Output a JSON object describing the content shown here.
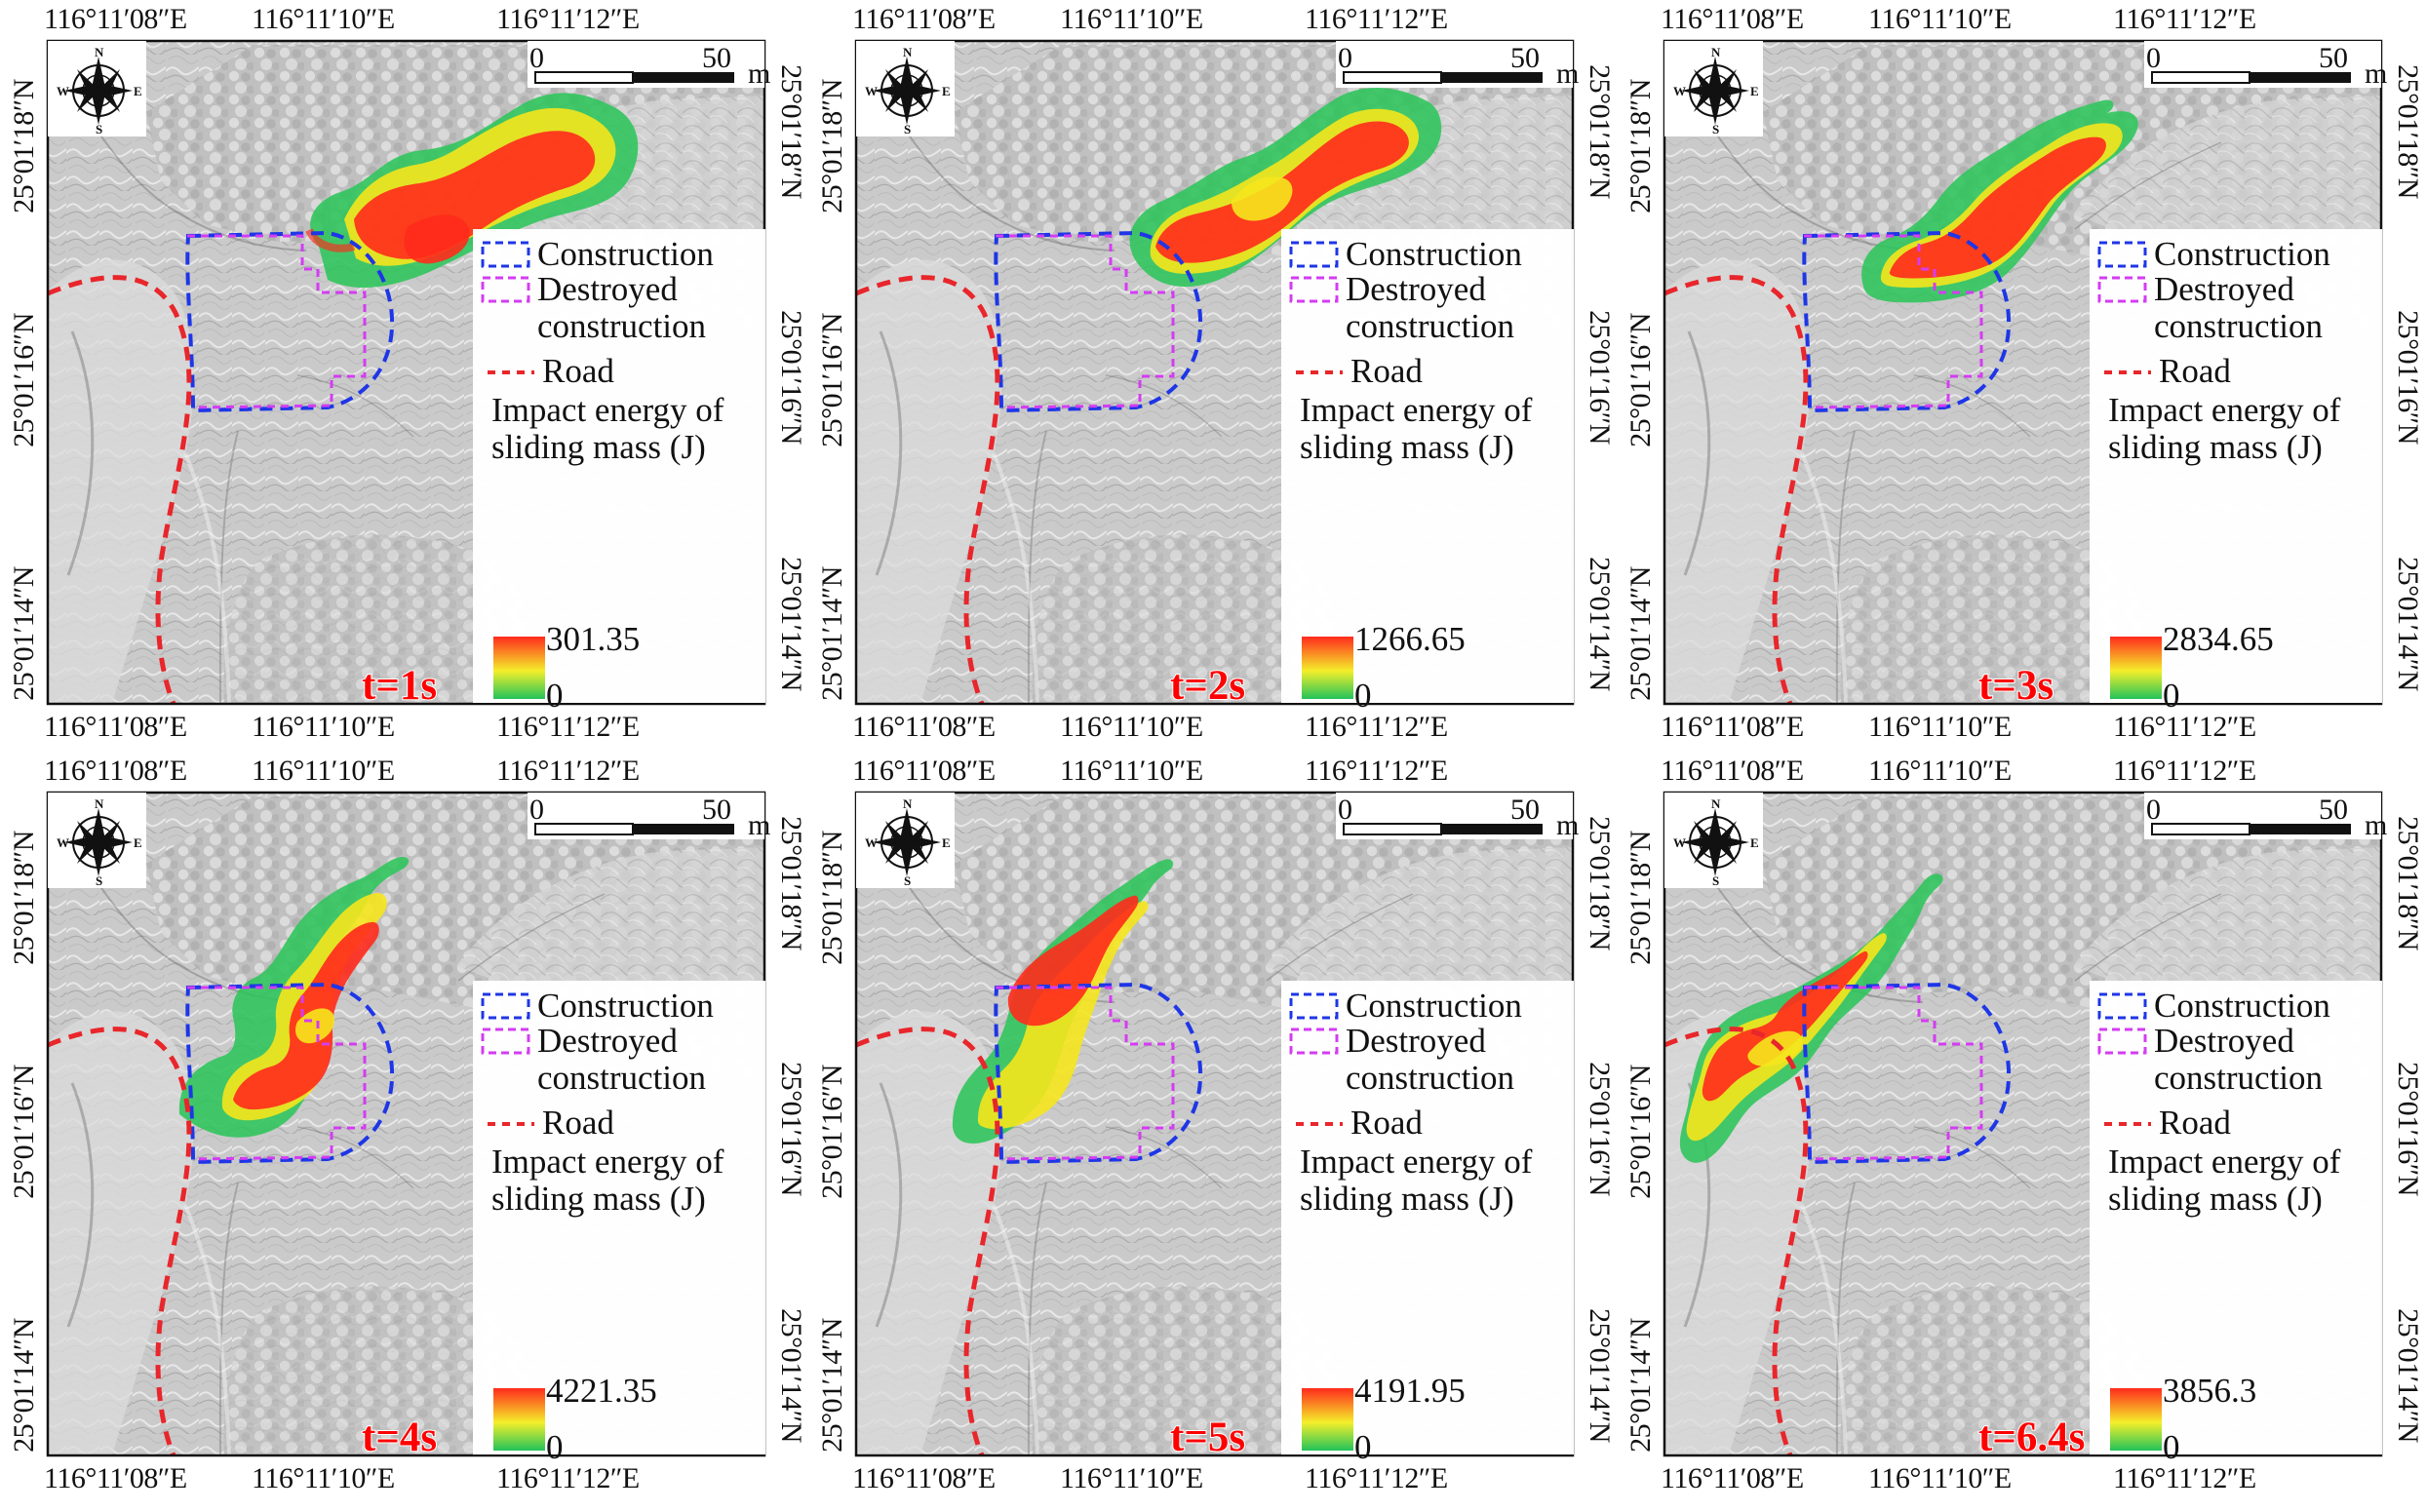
{
  "colors": {
    "energy_high": "#ff2a1c",
    "energy_mid": "#ffea2a",
    "energy_low": "#22c35a",
    "construction": "#1e36e6",
    "destroyed_construction": "#d43cf2",
    "road": "#e8262b",
    "terrain": "#bdbdbd"
  },
  "icons": {
    "compass": "north-arrow-compass-icon",
    "scale_bar": "scale-bar-icon",
    "legend_color_ramp": "color-ramp-icon"
  },
  "map": {
    "top_coordinates": [
      "116°11′08″E",
      "116°11′10″E",
      "116°11′12″E"
    ],
    "bottom_coordinates": [
      "116°11′08″E",
      "116°11′10″E",
      "116°11′12″E"
    ],
    "left_coordinates": [
      "25°01′18″N",
      "25°01′16″N",
      "25°01′14″N"
    ],
    "right_coordinates": [
      "25°01′18″N",
      "25°01′16″N",
      "25°01′14″N"
    ],
    "compass": {
      "north": "N",
      "south": "S",
      "east": "E",
      "west": "W"
    },
    "scale_bar": {
      "start": "0",
      "end": "50",
      "unit": "m"
    },
    "legend": {
      "construction": "Construction",
      "destroyed_line1": "Destroyed",
      "destroyed_line2": "construction",
      "road": "Road",
      "energy_line1": "Impact energy of",
      "energy_line2": "sliding mass (J)",
      "ramp_min": "0"
    }
  },
  "panels": [
    {
      "time": "t=1s",
      "max_energy": "301.35"
    },
    {
      "time": "t=2s",
      "max_energy": "1266.65"
    },
    {
      "time": "t=3s",
      "max_energy": "2834.65"
    },
    {
      "time": "t=4s",
      "max_energy": "4221.35"
    },
    {
      "time": "t=5s",
      "max_energy": "4191.95"
    },
    {
      "time": "t=6.4s",
      "max_energy": "3856.3"
    }
  ]
}
